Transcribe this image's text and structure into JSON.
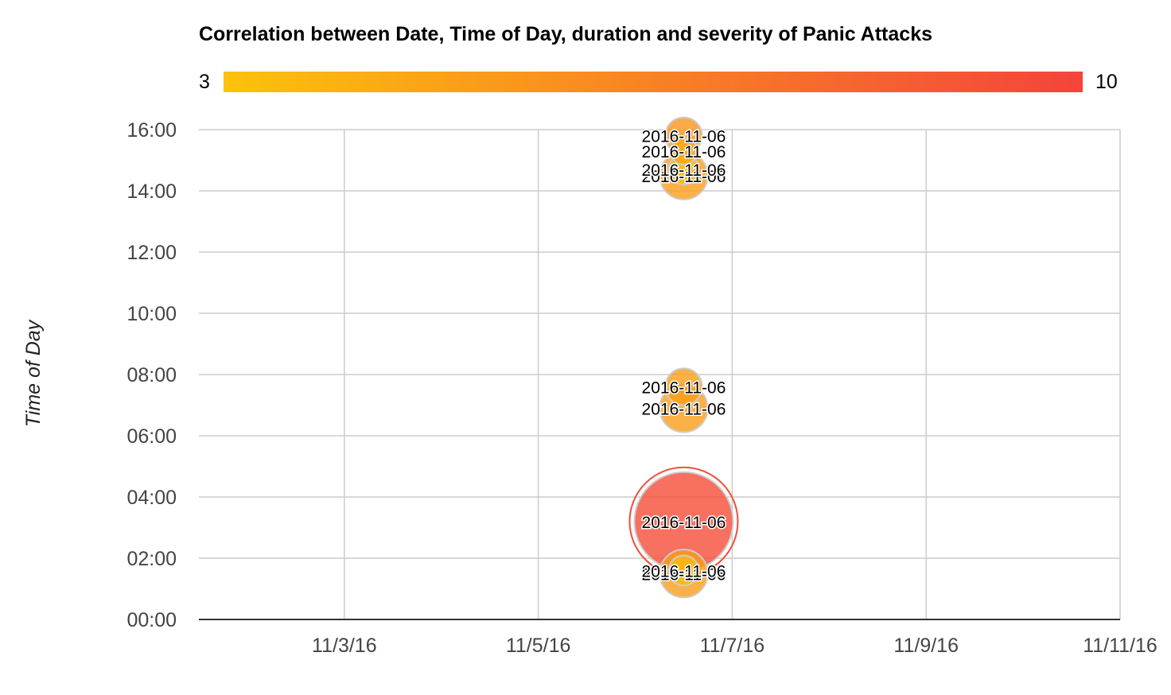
{
  "chart_data": {
    "type": "scatter",
    "subtype": "bubble",
    "title": "Correlation between Date, Time of Day, duration and severity of Panic Attacks",
    "xlabel": "",
    "ylabel": "Time of Day",
    "x_ticks": [
      "11/3/16",
      "11/5/16",
      "11/7/16",
      "11/9/16",
      "11/11/16"
    ],
    "y_ticks": [
      "00:00",
      "02:00",
      "04:00",
      "06:00",
      "08:00",
      "10:00",
      "12:00",
      "14:00",
      "16:00"
    ],
    "xlim": [
      "2016-11-01T12:00",
      "2016-11-11T00:00"
    ],
    "ylim_hours": [
      0,
      16
    ],
    "grid": true,
    "color_axis": {
      "min": 3,
      "max": 10,
      "min_label": "3",
      "max_label": "10",
      "colors": [
        "#fdc20a",
        "#f4433c"
      ],
      "placement": "top"
    },
    "points": [
      {
        "label": "2016-11-06",
        "date": "2016-11-06",
        "time_hours": 15.8,
        "duration": 2,
        "severity": 5.5
      },
      {
        "label": "2016-11-06",
        "date": "2016-11-06",
        "time_hours": 15.3,
        "duration": 1.3,
        "severity": 4.5
      },
      {
        "label": "2016-11-06",
        "date": "2016-11-06",
        "time_hours": 14.5,
        "duration": 3,
        "severity": 5
      },
      {
        "label": "2016-11-06",
        "date": "2016-11-06",
        "time_hours": 14.7,
        "duration": 1.5,
        "severity": 3.3
      },
      {
        "label": "2016-11-06",
        "date": "2016-11-06",
        "time_hours": 7.6,
        "duration": 2,
        "severity": 5
      },
      {
        "label": "2016-11-06",
        "date": "2016-11-06",
        "time_hours": 6.9,
        "duration": 3,
        "severity": 5
      },
      {
        "label": "2016-11-06",
        "date": "2016-11-06",
        "time_hours": 3.2,
        "duration": 10,
        "severity": 9.5
      },
      {
        "label": "2016-11-06",
        "date": "2016-11-06",
        "time_hours": 1.5,
        "duration": 3,
        "severity": 5
      },
      {
        "label": "2016-11-06",
        "date": "2016-11-06",
        "time_hours": 1.6,
        "duration": 1.5,
        "severity": 3.4
      }
    ]
  }
}
